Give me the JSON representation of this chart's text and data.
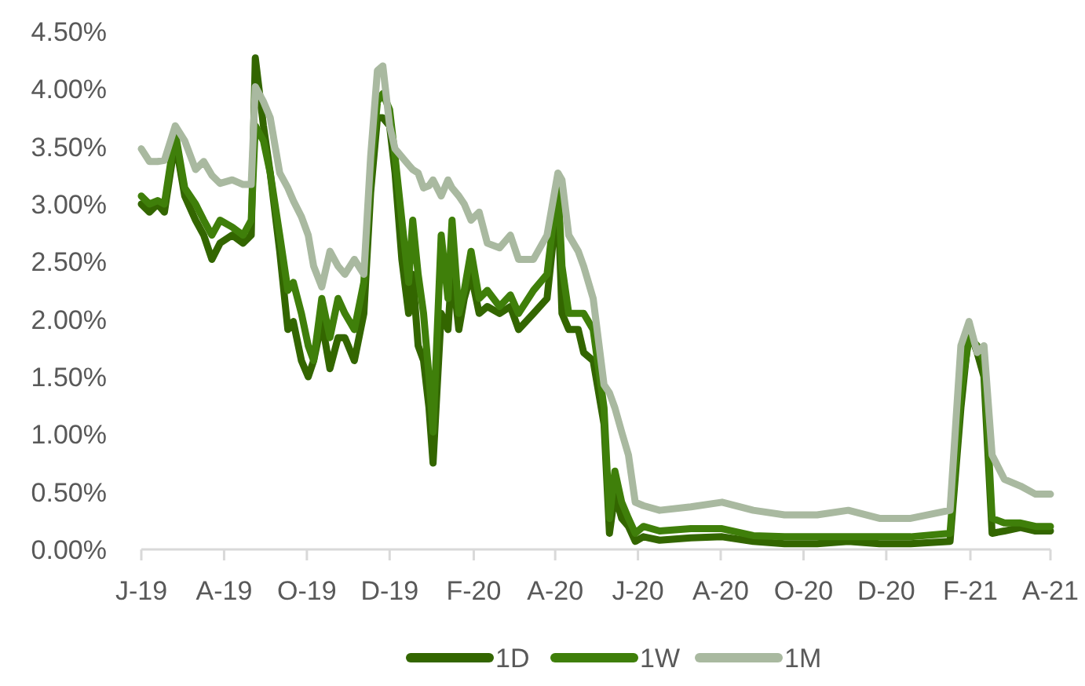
{
  "chart_data": {
    "type": "line",
    "x": [
      "2019-06-01",
      "2019-06-07",
      "2019-06-13",
      "2019-06-18",
      "2019-06-26",
      "2019-07-03",
      "2019-07-11",
      "2019-07-17",
      "2019-07-23",
      "2019-07-29",
      "2019-08-07",
      "2019-08-15",
      "2019-08-21",
      "2019-08-24",
      "2019-08-30",
      "2019-09-04",
      "2019-09-11",
      "2019-09-17",
      "2019-09-21",
      "2019-09-27",
      "2019-10-02",
      "2019-10-06",
      "2019-10-12",
      "2019-10-18",
      "2019-10-24",
      "2019-10-29",
      "2019-11-05",
      "2019-11-12",
      "2019-11-17",
      "2019-11-22",
      "2019-11-26",
      "2019-12-01",
      "2019-12-05",
      "2019-12-10",
      "2019-12-15",
      "2019-12-18",
      "2019-12-22",
      "2019-12-26",
      "2019-12-30",
      "2020-01-02",
      "2020-01-08",
      "2020-01-13",
      "2020-01-16",
      "2020-01-21",
      "2020-01-25",
      "2020-01-30",
      "2020-02-05",
      "2020-02-11",
      "2020-02-20",
      "2020-02-28",
      "2020-03-05",
      "2020-03-16",
      "2020-03-26",
      "2020-04-03",
      "2020-04-06",
      "2020-04-11",
      "2020-04-18",
      "2020-04-22",
      "2020-04-29",
      "2020-05-07",
      "2020-05-11",
      "2020-05-15",
      "2020-05-20",
      "2020-05-25",
      "2020-05-30",
      "2020-06-05",
      "2020-06-17",
      "2020-07-10",
      "2020-08-02",
      "2020-08-25",
      "2020-09-17",
      "2020-10-11",
      "2020-11-03",
      "2020-11-26",
      "2020-12-19",
      "2021-01-17",
      "2021-01-25",
      "2021-01-31",
      "2021-02-06",
      "2021-02-11",
      "2021-02-17",
      "2021-02-26",
      "2021-03-10",
      "2021-03-21",
      "2021-04-01"
    ],
    "series": [
      {
        "name": "1D",
        "color": "#336600",
        "values": [
          3.0,
          2.93,
          3.0,
          2.93,
          3.55,
          3.07,
          2.86,
          2.73,
          2.52,
          2.66,
          2.73,
          2.66,
          2.73,
          4.27,
          3.68,
          3.27,
          2.59,
          1.91,
          1.98,
          1.64,
          1.5,
          1.64,
          1.98,
          1.57,
          1.84,
          1.84,
          1.64,
          2.05,
          3.1,
          3.75,
          3.75,
          3.68,
          3.27,
          2.52,
          2.05,
          2.39,
          1.77,
          1.64,
          1.23,
          0.75,
          2.05,
          1.91,
          2.46,
          1.91,
          2.18,
          2.39,
          2.05,
          2.11,
          2.05,
          2.11,
          1.91,
          2.05,
          2.18,
          3.07,
          2.05,
          1.91,
          1.91,
          1.71,
          1.64,
          1.09,
          0.14,
          0.48,
          0.27,
          0.2,
          0.07,
          0.11,
          0.08,
          0.1,
          0.11,
          0.07,
          0.05,
          0.05,
          0.07,
          0.05,
          0.05,
          0.07,
          1.23,
          1.91,
          1.71,
          1.5,
          0.14,
          0.16,
          0.19,
          0.16,
          0.16
        ]
      },
      {
        "name": "1W",
        "color": "#3f7f0a",
        "values": [
          3.07,
          3.0,
          3.03,
          3.0,
          3.62,
          3.14,
          3.0,
          2.86,
          2.73,
          2.86,
          2.8,
          2.73,
          2.86,
          3.68,
          3.55,
          3.27,
          2.73,
          2.25,
          2.32,
          2.05,
          1.77,
          1.64,
          2.18,
          1.84,
          2.18,
          2.05,
          1.91,
          2.32,
          3.27,
          3.89,
          3.96,
          3.82,
          3.41,
          2.86,
          2.32,
          2.86,
          2.39,
          2.05,
          1.5,
          1.02,
          2.73,
          2.18,
          2.86,
          2.05,
          2.25,
          2.59,
          2.18,
          2.25,
          2.11,
          2.21,
          2.05,
          2.25,
          2.39,
          3.18,
          2.46,
          2.05,
          2.05,
          2.05,
          1.91,
          1.23,
          0.27,
          0.68,
          0.41,
          0.27,
          0.14,
          0.2,
          0.16,
          0.18,
          0.18,
          0.12,
          0.11,
          0.11,
          0.11,
          0.11,
          0.11,
          0.14,
          1.36,
          1.84,
          1.77,
          1.64,
          0.27,
          0.23,
          0.23,
          0.2,
          0.2
        ]
      },
      {
        "name": "1M",
        "color": "#a9b9a0",
        "values": [
          3.48,
          3.37,
          3.37,
          3.38,
          3.68,
          3.55,
          3.3,
          3.37,
          3.25,
          3.18,
          3.21,
          3.17,
          3.17,
          4.02,
          3.89,
          3.75,
          3.27,
          3.14,
          3.03,
          2.89,
          2.73,
          2.46,
          2.28,
          2.59,
          2.46,
          2.39,
          2.52,
          2.39,
          3.41,
          4.16,
          4.2,
          3.68,
          3.48,
          3.41,
          3.34,
          3.3,
          3.27,
          3.14,
          3.16,
          3.21,
          3.07,
          3.21,
          3.14,
          3.07,
          3.0,
          2.86,
          2.93,
          2.66,
          2.62,
          2.73,
          2.52,
          2.52,
          2.73,
          3.27,
          3.21,
          2.73,
          2.59,
          2.46,
          2.18,
          1.43,
          1.36,
          1.23,
          1.02,
          0.82,
          0.41,
          0.38,
          0.34,
          0.37,
          0.41,
          0.34,
          0.3,
          0.3,
          0.34,
          0.27,
          0.27,
          0.34,
          1.77,
          1.98,
          1.71,
          1.77,
          0.82,
          0.61,
          0.55,
          0.48,
          0.48
        ]
      }
    ],
    "xlim": [
      "2019-06-01",
      "2021-04-01"
    ],
    "xticks": [
      {
        "value": "2019-06-01",
        "label": "J-19"
      },
      {
        "value": "2019-08-01",
        "label": "A-19"
      },
      {
        "value": "2019-10-01",
        "label": "O-19"
      },
      {
        "value": "2019-12-01",
        "label": "D-19"
      },
      {
        "value": "2020-02-01",
        "label": "F-20"
      },
      {
        "value": "2020-04-01",
        "label": "A-20"
      },
      {
        "value": "2020-06-01",
        "label": "J-20"
      },
      {
        "value": "2020-08-01",
        "label": "A-20"
      },
      {
        "value": "2020-10-01",
        "label": "O-20"
      },
      {
        "value": "2020-12-01",
        "label": "D-20"
      },
      {
        "value": "2021-02-01",
        "label": "F-21"
      },
      {
        "value": "2021-04-01",
        "label": "A-21"
      }
    ],
    "ylim": [
      0,
      4.5
    ],
    "yticks": [
      {
        "value": 0,
        "label": "0.00%"
      },
      {
        "value": 0.5,
        "label": "0.50%"
      },
      {
        "value": 1,
        "label": "1.00%"
      },
      {
        "value": 1.5,
        "label": "1.50%"
      },
      {
        "value": 2,
        "label": "2.00%"
      },
      {
        "value": 2.5,
        "label": "2.50%"
      },
      {
        "value": 3,
        "label": "3.00%"
      },
      {
        "value": 3.5,
        "label": "3.50%"
      },
      {
        "value": 4,
        "label": "4.00%"
      },
      {
        "value": 4.5,
        "label": "4.50%"
      }
    ],
    "grid": false,
    "legend": "bottom",
    "marker": "none",
    "line_style": "solid"
  }
}
